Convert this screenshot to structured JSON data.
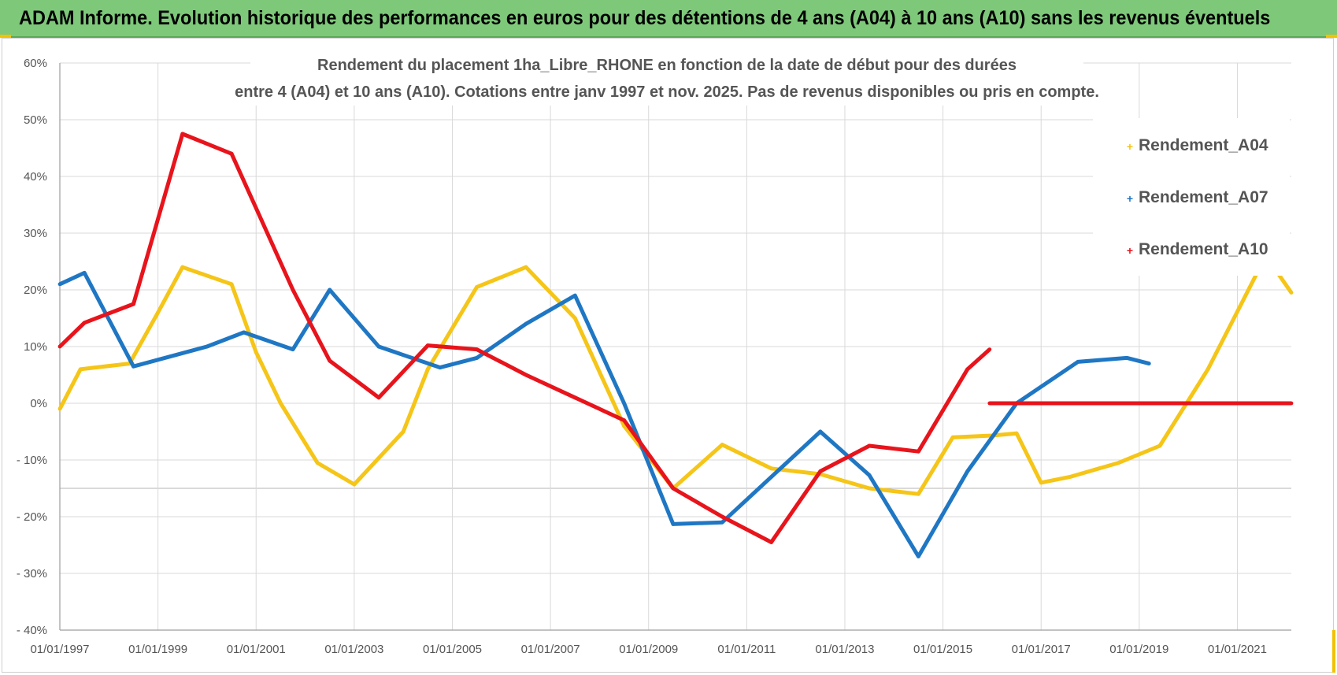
{
  "header": {
    "title": "ADAM Informe. Evolution historique des performances en euros pour des détentions de 4 ans (A04) à 10 ans (A10) sans les revenus éventuels"
  },
  "colors": {
    "header_bg": "#7ec87a",
    "A04": "#f5c518",
    "A07": "#1f77c4",
    "A10": "#e8141c",
    "grid": "#d9d9d9",
    "text": "#555555"
  },
  "chart_data": {
    "type": "line",
    "title_lines": [
      "Rendement du placement 1ha_Libre_RHONE en fonction de la date de début pour des durées",
      "entre 4 (A04) et 10 ans (A10). Cotations entre janv 1997 et nov. 2025. Pas de revenus disponibles ou pris en compte."
    ],
    "xlim": [
      1997.0,
      2022.1
    ],
    "ylim": [
      -0.4,
      0.6
    ],
    "y_ticks": [
      {
        "v": 0.6,
        "label": "60%"
      },
      {
        "v": 0.5,
        "label": "50%"
      },
      {
        "v": 0.4,
        "label": "40%"
      },
      {
        "v": 0.3,
        "label": "30%"
      },
      {
        "v": 0.2,
        "label": "20%"
      },
      {
        "v": 0.1,
        "label": "10%"
      },
      {
        "v": 0.0,
        "label": "0%"
      },
      {
        "v": -0.1,
        "label": "- 10%"
      },
      {
        "v": -0.2,
        "label": "- 20%"
      },
      {
        "v": -0.3,
        "label": "- 30%"
      },
      {
        "v": -0.4,
        "label": "- 40%"
      }
    ],
    "x_ticks": [
      {
        "v": 1997,
        "label": "01/01/1997"
      },
      {
        "v": 1999,
        "label": "01/01/1999"
      },
      {
        "v": 2001,
        "label": "01/01/2001"
      },
      {
        "v": 2003,
        "label": "01/01/2003"
      },
      {
        "v": 2005,
        "label": "01/01/2005"
      },
      {
        "v": 2007,
        "label": "01/01/2007"
      },
      {
        "v": 2009,
        "label": "01/01/2009"
      },
      {
        "v": 2011,
        "label": "01/01/2011"
      },
      {
        "v": 2013,
        "label": "01/01/2013"
      },
      {
        "v": 2015,
        "label": "01/01/2015"
      },
      {
        "v": 2017,
        "label": "01/01/2017"
      },
      {
        "v": 2019,
        "label": "01/01/2019"
      },
      {
        "v": 2021,
        "label": "01/01/2021"
      }
    ],
    "legend": [
      "Rendement_A04",
      "Rendement_A07",
      "Rendement_A10"
    ],
    "series": [
      {
        "name": "Rendement_A04",
        "color": "#f5c518",
        "points": [
          [
            1997.0,
            -0.01
          ],
          [
            1997.42,
            0.06
          ],
          [
            1998.42,
            0.07
          ],
          [
            1999.0,
            0.16
          ],
          [
            1999.5,
            0.24
          ],
          [
            2000.5,
            0.21
          ],
          [
            2001.0,
            0.09
          ],
          [
            2001.5,
            0.0
          ],
          [
            2002.25,
            -0.105
          ],
          [
            2003.0,
            -0.143
          ],
          [
            2004.0,
            -0.05
          ],
          [
            2004.5,
            0.06
          ],
          [
            2005.5,
            0.205
          ],
          [
            2006.5,
            0.24
          ],
          [
            2007.5,
            0.15
          ],
          [
            2008.5,
            -0.04
          ],
          [
            2009.5,
            -0.15
          ],
          [
            2010.5,
            -0.073
          ],
          [
            2011.5,
            -0.115
          ],
          [
            2012.5,
            -0.125
          ],
          [
            2013.5,
            -0.15
          ],
          [
            2014.5,
            -0.16
          ],
          [
            2015.2,
            -0.06
          ],
          [
            2016.0,
            -0.057
          ],
          [
            2016.5,
            -0.053
          ],
          [
            2017.0,
            -0.14
          ],
          [
            2017.58,
            -0.13
          ],
          [
            2018.58,
            -0.105
          ],
          [
            2019.42,
            -0.075
          ],
          [
            2020.4,
            0.06
          ],
          [
            2021.58,
            0.26
          ],
          [
            2022.1,
            0.195
          ]
        ]
      },
      {
        "name": "Rendement_A07",
        "color": "#1f77c4",
        "points": [
          [
            1997.0,
            0.21
          ],
          [
            1997.5,
            0.23
          ],
          [
            1998.5,
            0.065
          ],
          [
            2000.0,
            0.1
          ],
          [
            2000.75,
            0.125
          ],
          [
            2001.75,
            0.095
          ],
          [
            2002.5,
            0.2
          ],
          [
            2003.5,
            0.1
          ],
          [
            2004.75,
            0.063
          ],
          [
            2005.5,
            0.08
          ],
          [
            2006.5,
            0.14
          ],
          [
            2007.5,
            0.19
          ],
          [
            2008.5,
            0.0
          ],
          [
            2009.5,
            -0.213
          ],
          [
            2010.5,
            -0.21
          ],
          [
            2011.5,
            -0.13
          ],
          [
            2012.5,
            -0.05
          ],
          [
            2013.5,
            -0.127
          ],
          [
            2014.5,
            -0.27
          ],
          [
            2015.5,
            -0.12
          ],
          [
            2016.5,
            0.0
          ],
          [
            2017.75,
            0.073
          ],
          [
            2018.75,
            0.08
          ],
          [
            2019.2,
            0.07
          ]
        ]
      },
      {
        "name": "Rendement_A10",
        "color": "#e8141c",
        "points": [
          [
            1997.0,
            0.1
          ],
          [
            1997.5,
            0.142
          ],
          [
            1998.5,
            0.175
          ],
          [
            1999.5,
            0.475
          ],
          [
            2000.5,
            0.44
          ],
          [
            2001.75,
            0.2
          ],
          [
            2002.5,
            0.075
          ],
          [
            2003.5,
            0.01
          ],
          [
            2004.5,
            0.102
          ],
          [
            2005.5,
            0.095
          ],
          [
            2006.5,
            0.05
          ],
          [
            2007.5,
            0.01
          ],
          [
            2008.5,
            -0.03
          ],
          [
            2009.5,
            -0.15
          ],
          [
            2010.5,
            -0.2
          ],
          [
            2011.5,
            -0.245
          ],
          [
            2012.5,
            -0.12
          ],
          [
            2013.5,
            -0.075
          ],
          [
            2014.5,
            -0.085
          ],
          [
            2015.5,
            0.06
          ],
          [
            2015.95,
            0.095
          ]
        ]
      },
      {
        "name": "Rendement_A10",
        "color": "#e8141c",
        "points": [
          [
            2015.95,
            0.0
          ],
          [
            2022.1,
            0.0
          ]
        ]
      }
    ]
  }
}
